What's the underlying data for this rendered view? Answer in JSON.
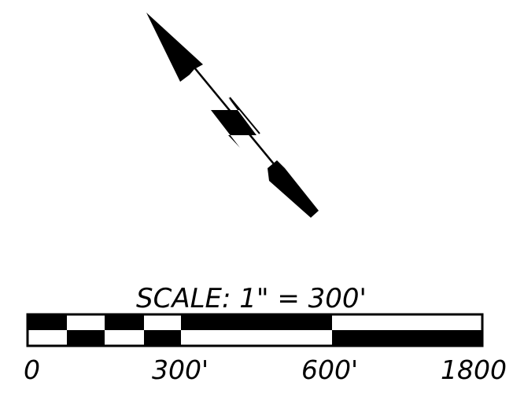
{
  "scale": {
    "label": "SCALE:  1\"  =  300'",
    "tick_labels": [
      "0",
      "300'",
      "600'",
      "1800"
    ]
  },
  "colors": {
    "ink": "#000000",
    "paper": "#ffffff"
  }
}
